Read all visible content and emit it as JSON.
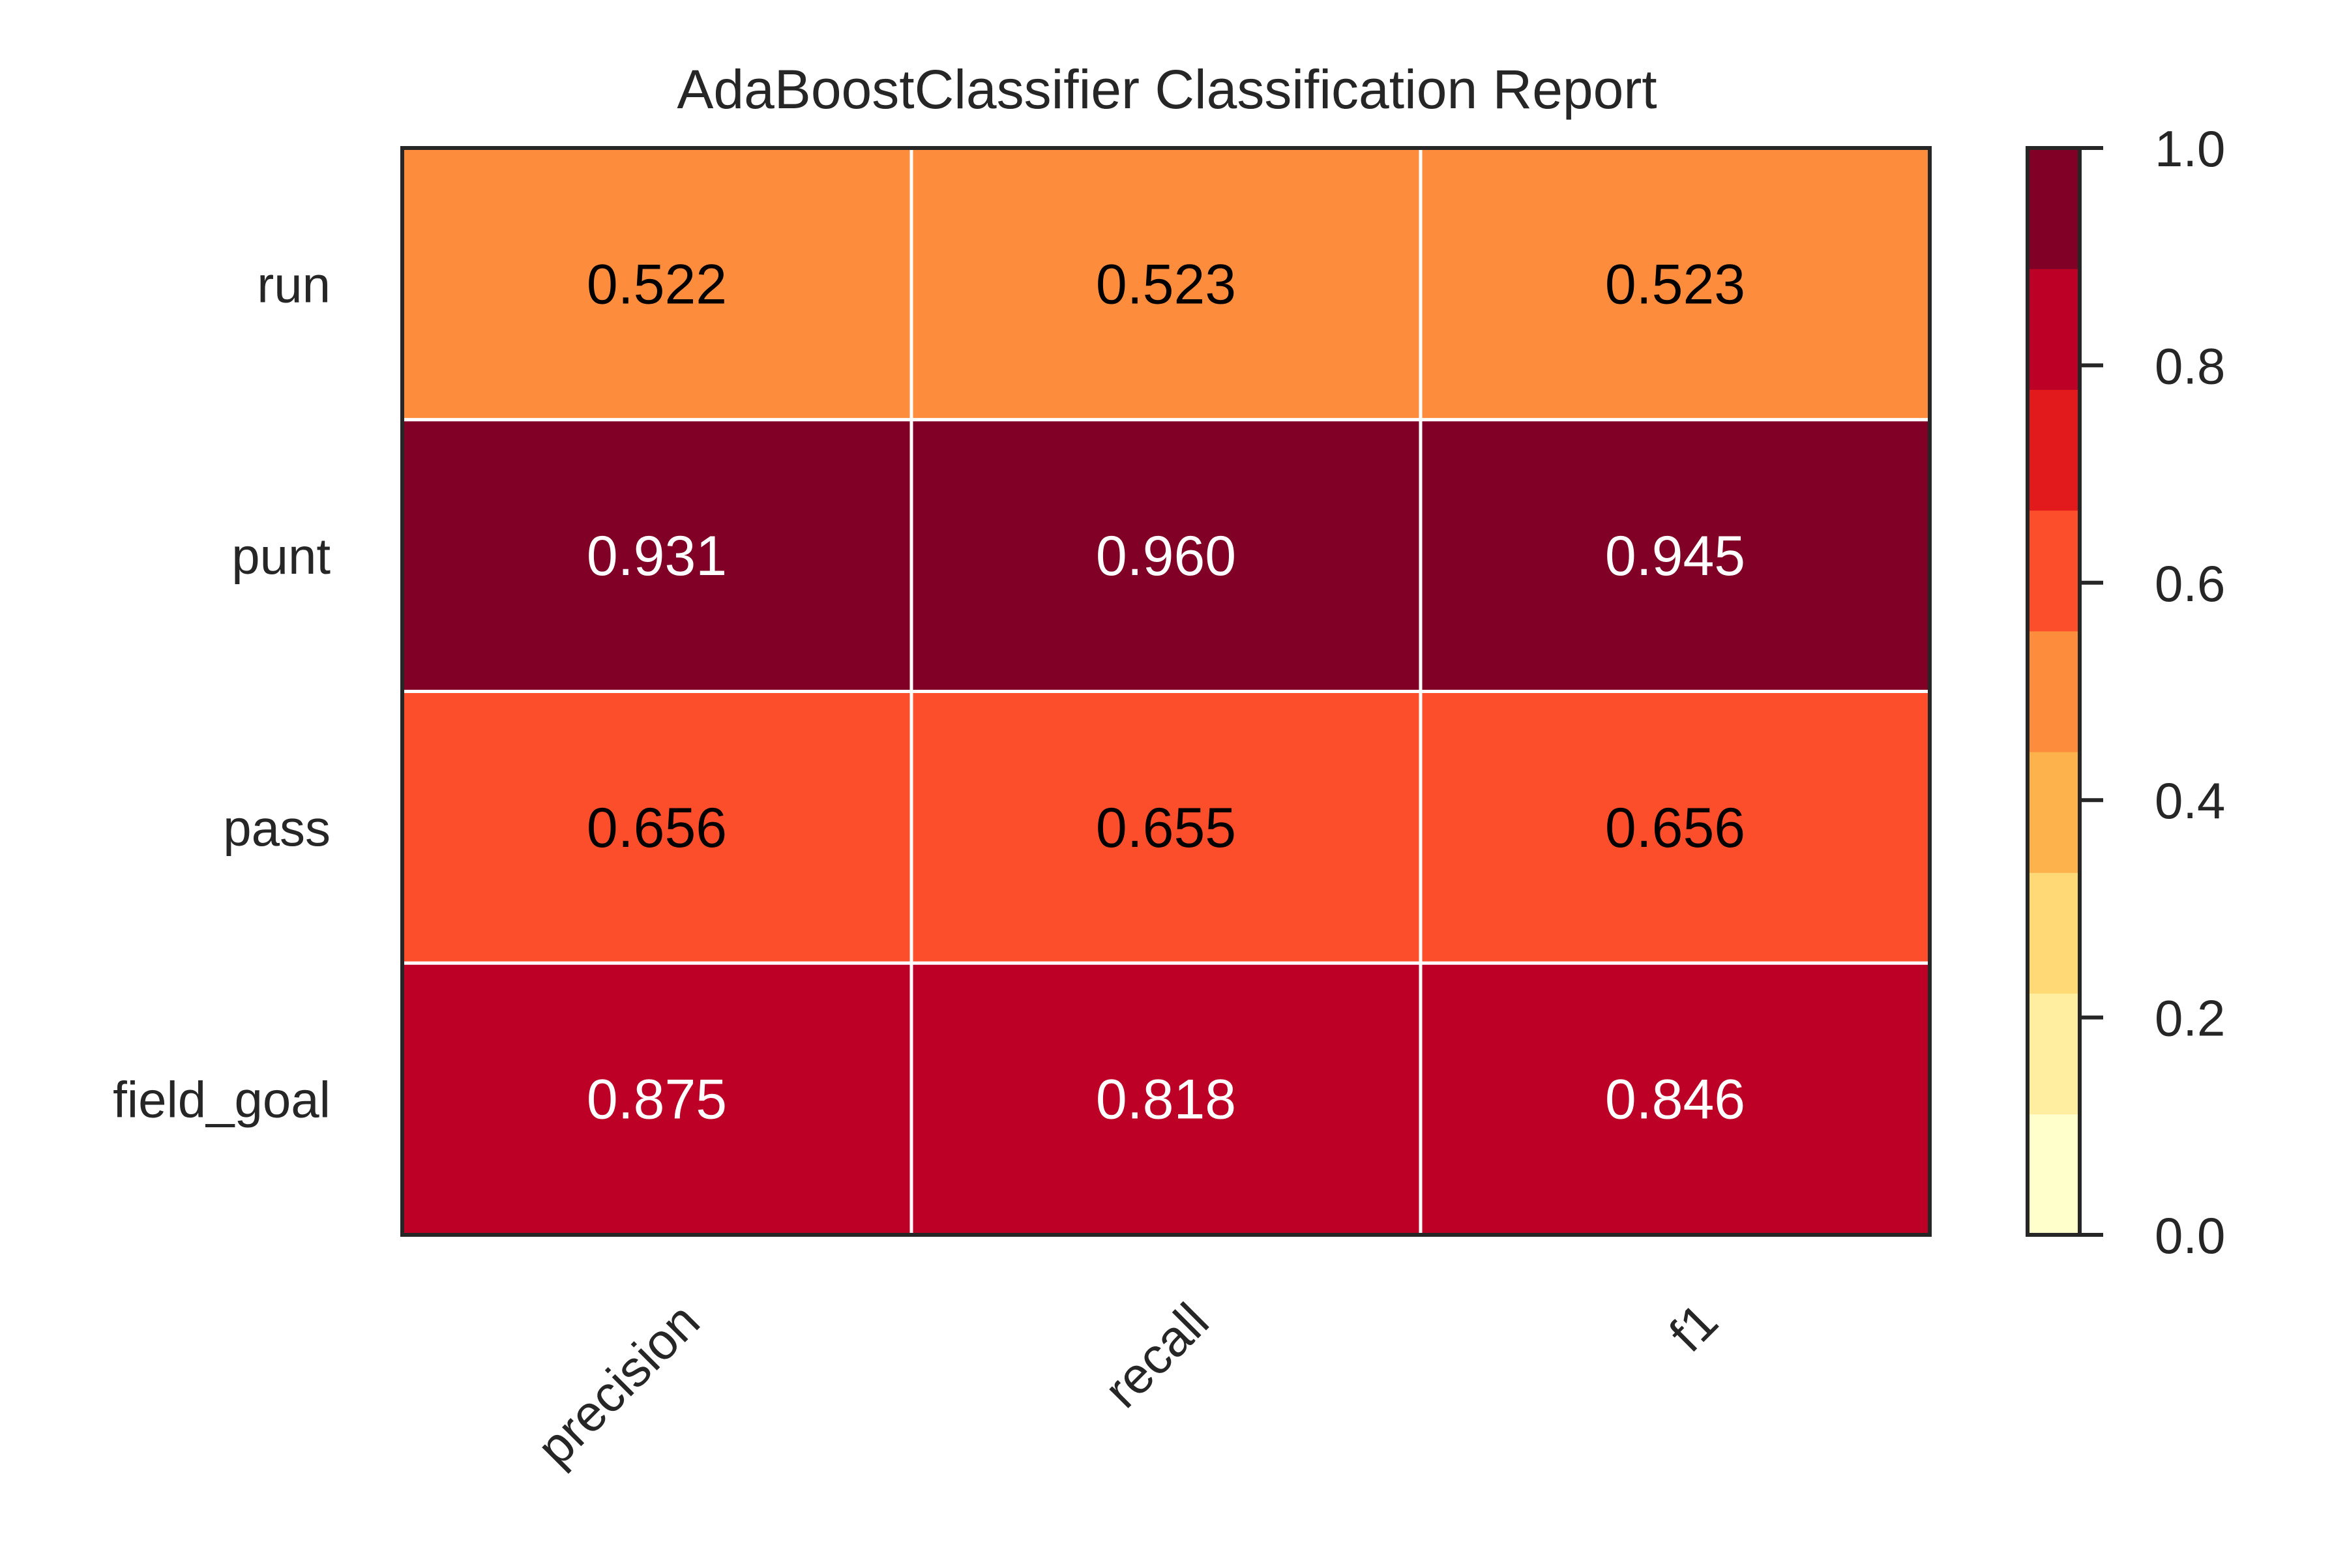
{
  "chart_data": {
    "type": "heatmap",
    "title": "AdaBoostClassifier Classification Report",
    "columns": [
      "precision",
      "recall",
      "f1"
    ],
    "rows": [
      "run",
      "punt",
      "pass",
      "field_goal"
    ],
    "values": [
      [
        0.522,
        0.523,
        0.523
      ],
      [
        0.931,
        0.96,
        0.945
      ],
      [
        0.656,
        0.655,
        0.656
      ],
      [
        0.875,
        0.818,
        0.846
      ]
    ],
    "value_labels": [
      [
        "0.522",
        "0.523",
        "0.523"
      ],
      [
        "0.931",
        "0.960",
        "0.945"
      ],
      [
        "0.656",
        "0.655",
        "0.656"
      ],
      [
        "0.875",
        "0.818",
        "0.846"
      ]
    ],
    "colorbar": {
      "range": [
        0.0,
        1.0
      ],
      "ticks": [
        "0.0",
        "0.2",
        "0.4",
        "0.6",
        "0.8",
        "1.0"
      ],
      "tick_values": [
        0.0,
        0.2,
        0.4,
        0.6,
        0.8,
        1.0
      ],
      "colormap": "YlOrRd",
      "levels": 9,
      "colors": [
        "#ffffcc",
        "#ffeda0",
        "#fed976",
        "#feb24c",
        "#fd8d3c",
        "#fc4e2a",
        "#e31a1c",
        "#bd0026",
        "#800026"
      ]
    },
    "grid": true,
    "legend": "none",
    "colors": {
      "cell_border": "#ffffff",
      "frame": "#262626",
      "text_dark": "#000000",
      "text_light": "#ffffff",
      "label_text": "#262626"
    }
  }
}
